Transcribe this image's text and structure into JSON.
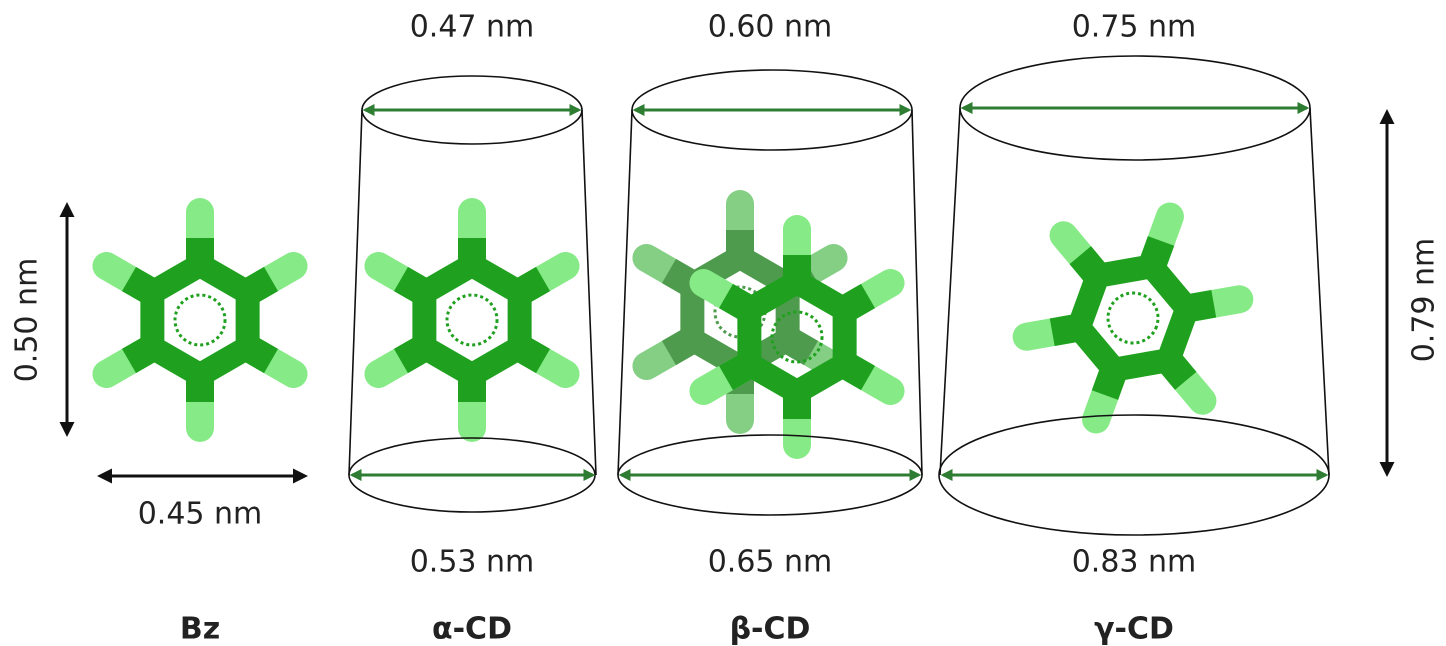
{
  "benzene": {
    "label": "Bz",
    "height": "0.50 nm",
    "width": "0.45 nm"
  },
  "cyclodextrins": [
    {
      "label": "α-CD",
      "top": "0.47 nm",
      "bottom": "0.53 nm"
    },
    {
      "label": "β-CD",
      "top": "0.60 nm",
      "bottom": "0.65 nm"
    },
    {
      "label": "γ-CD",
      "top": "0.75 nm",
      "bottom": "0.83 nm"
    }
  ],
  "height": "0.79 nm"
}
